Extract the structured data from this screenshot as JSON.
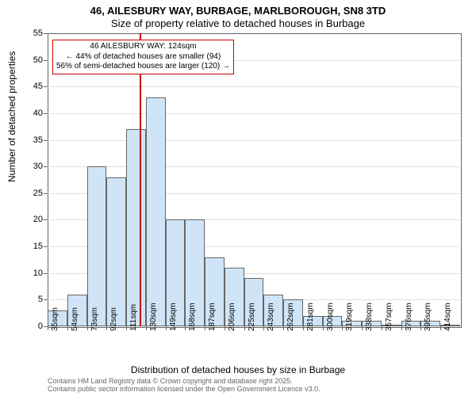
{
  "title_line1": "46, AILESBURY WAY, BURBAGE, MARLBOROUGH, SN8 3TD",
  "title_line2": "Size of property relative to detached houses in Burbage",
  "ylabel": "Number of detached properties",
  "xlabel": "Distribution of detached houses by size in Burbage",
  "footer_line1": "Contains HM Land Registry data © Crown copyright and database right 2025.",
  "footer_line2": "Contains public sector information licensed under the Open Government Licence v3.0.",
  "annot_line1": "46 AILESBURY WAY: 124sqm",
  "annot_line2": "← 44% of detached houses are smaller (94)",
  "annot_line3": "56% of semi-detached houses are larger (120) →",
  "marker_value": 124,
  "chart": {
    "type": "histogram",
    "x_start": 35,
    "x_step": 19,
    "bin_width": 19,
    "categories": [
      "35sqm",
      "54sqm",
      "73sqm",
      "92sqm",
      "111sqm",
      "130sqm",
      "149sqm",
      "168sqm",
      "187sqm",
      "206sqm",
      "225sqm",
      "243sqm",
      "262sqm",
      "281sqm",
      "300sqm",
      "319sqm",
      "338sqm",
      "357sqm",
      "376sqm",
      "395sqm",
      "414sqm"
    ],
    "values": [
      3,
      6,
      30,
      28,
      37,
      43,
      20,
      20,
      13,
      11,
      9,
      6,
      5,
      2,
      2,
      1,
      1,
      0,
      1,
      1,
      0
    ],
    "ylim": [
      0,
      55
    ],
    "ytick_step": 5,
    "bar_fill": "#cfe5f7",
    "bar_stroke": "#666666",
    "grid_color": "#e0e0e0",
    "axis_color": "#666666",
    "background_color": "#ffffff",
    "marker_color": "#cc0000",
    "title_fontsize": 13,
    "label_fontsize": 12,
    "tick_fontsize": 11
  }
}
